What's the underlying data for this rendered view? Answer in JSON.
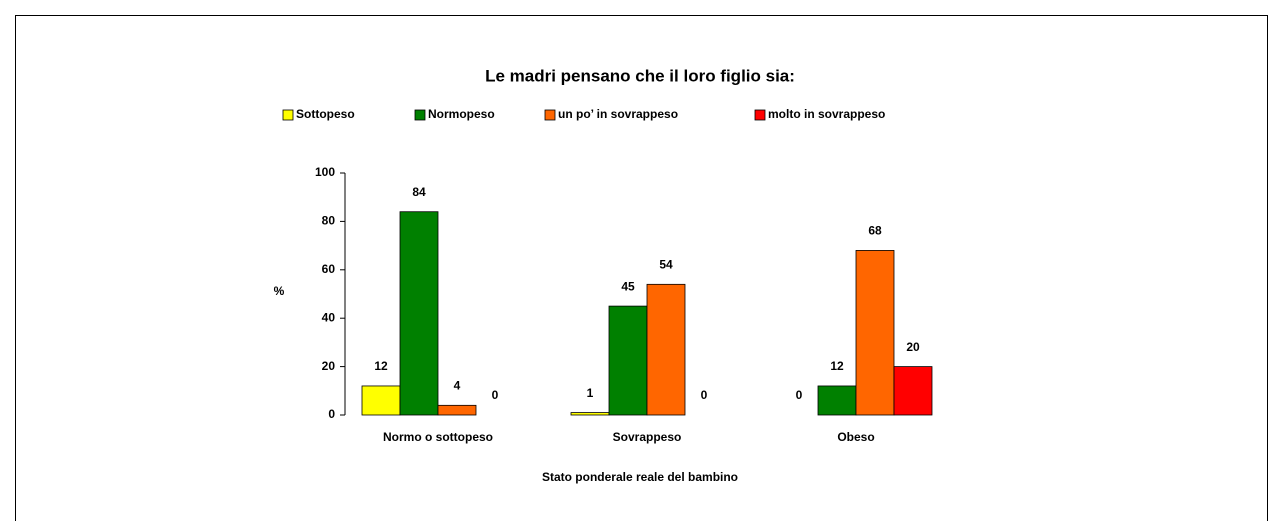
{
  "chart_data": {
    "type": "bar",
    "title": "Le madri pensano che il loro figlio sia:",
    "x_label": "Stato ponderale reale del bambino",
    "y_label": "%",
    "categories": [
      "Normo o sottopeso",
      "Sovrappeso",
      "Obeso"
    ],
    "series": [
      {
        "name": "Sottopeso",
        "color": "#ffff00",
        "values": [
          12,
          1,
          0
        ]
      },
      {
        "name": "Normopeso",
        "color": "#008000",
        "values": [
          84,
          45,
          12
        ]
      },
      {
        "name": "un po’ in sovrappeso",
        "color": "#ff6600",
        "values": [
          4,
          54,
          68
        ]
      },
      {
        "name": "molto in sovrappeso",
        "color": "#ff0000",
        "values": [
          0,
          0,
          20
        ]
      }
    ],
    "ylim": [
      0,
      100
    ],
    "yticks": [
      0,
      20,
      40,
      60,
      80,
      100
    ],
    "legend": "top",
    "grid": false
  }
}
